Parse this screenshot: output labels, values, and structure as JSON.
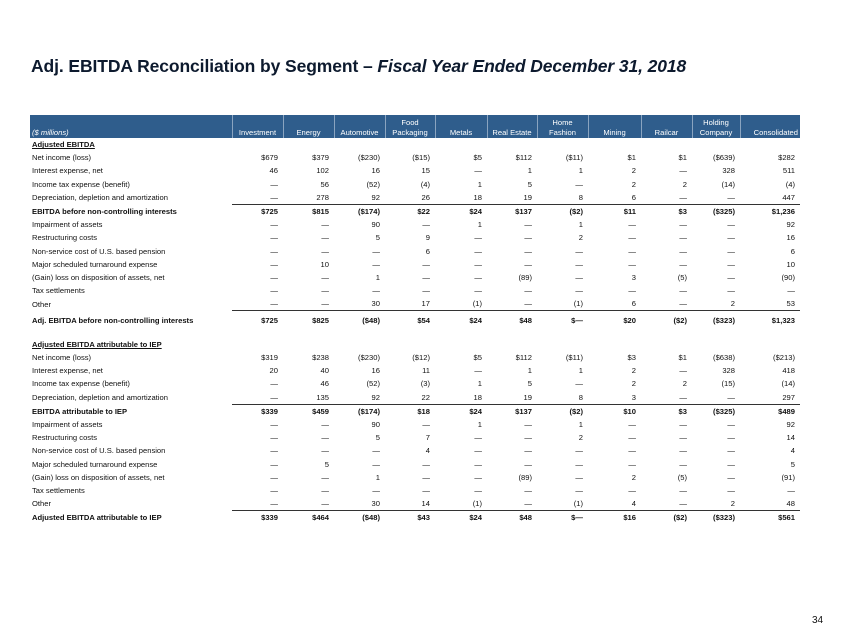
{
  "title": {
    "main": "Adj. EBITDA Reconciliation by Segment – ",
    "italic": "Fiscal Year Ended  December 31, 2018"
  },
  "table": {
    "unit_label": "($ millions)",
    "columns": [
      "Investment",
      "Energy",
      "Automotive",
      "Food Packaging",
      "Metals",
      "Real Estate",
      "Home Fashion",
      "Mining",
      "Railcar",
      "Holding Company",
      "Consolidated"
    ],
    "rows": [
      {
        "type": "sec",
        "label": "Adjusted EBITDA",
        "values": []
      },
      {
        "type": "ind",
        "label": "Net income (loss)",
        "values": [
          "$679",
          "$379",
          "($230)",
          "($15)",
          "$5",
          "$112",
          "($11)",
          "$1",
          "$1",
          "($639)",
          "$282"
        ]
      },
      {
        "type": "ind",
        "label": "Interest expense, net",
        "values": [
          "46",
          "102",
          "16",
          "15",
          "—",
          "1",
          "1",
          "2",
          "—",
          "328",
          "511"
        ]
      },
      {
        "type": "ind",
        "label": "Income tax expense (benefit)",
        "values": [
          "—",
          "56",
          "(52)",
          "(4)",
          "1",
          "5",
          "—",
          "2",
          "2",
          "(14)",
          "(4)"
        ]
      },
      {
        "type": "ind ul",
        "label": "Depreciation, depletion and amortization",
        "values": [
          "—",
          "278",
          "92",
          "26",
          "18",
          "19",
          "8",
          "6",
          "—",
          "—",
          "447"
        ]
      },
      {
        "type": "bold",
        "label": "EBITDA before non-controlling interests",
        "values": [
          "$725",
          "$815",
          "($174)",
          "$22",
          "$24",
          "$137",
          "($2)",
          "$11",
          "$3",
          "($325)",
          "$1,236"
        ]
      },
      {
        "type": "ind",
        "label": "Impairment of assets",
        "values": [
          "—",
          "—",
          "90",
          "—",
          "1",
          "—",
          "1",
          "—",
          "—",
          "—",
          "92"
        ]
      },
      {
        "type": "ind",
        "label": "Restructuring costs",
        "values": [
          "—",
          "—",
          "5",
          "9",
          "—",
          "—",
          "2",
          "—",
          "—",
          "—",
          "16"
        ]
      },
      {
        "type": "ind",
        "label": "Non-service cost of U.S. based pension",
        "values": [
          "—",
          "—",
          "—",
          "6",
          "—",
          "—",
          "—",
          "—",
          "—",
          "—",
          "6"
        ]
      },
      {
        "type": "ind",
        "label": "Major scheduled turnaround expense",
        "values": [
          "—",
          "10",
          "—",
          "—",
          "—",
          "—",
          "—",
          "—",
          "—",
          "—",
          "10"
        ]
      },
      {
        "type": "ind",
        "label": "(Gain) loss on disposition of assets, net",
        "values": [
          "—",
          "—",
          "1",
          "—",
          "—",
          "(89)",
          "—",
          "3",
          "(5)",
          "—",
          "(90)"
        ]
      },
      {
        "type": "ind",
        "label": "Tax settlements",
        "values": [
          "—",
          "—",
          "—",
          "—",
          "—",
          "—",
          "—",
          "—",
          "—",
          "—",
          "—"
        ]
      },
      {
        "type": "ind ul",
        "label": "Other",
        "values": [
          "—",
          "—",
          "30",
          "17",
          "(1)",
          "—",
          "(1)",
          "6",
          "—",
          "2",
          "53"
        ]
      },
      {
        "type": "bold tall",
        "label": "Adj. EBITDA before non-controlling interests",
        "values": [
          "$725",
          "$825",
          "($48)",
          "$54",
          "$24",
          "$48",
          "$—",
          "$20",
          "($2)",
          "($323)",
          "$1,323"
        ]
      },
      {
        "type": "spacer",
        "label": "",
        "values": []
      },
      {
        "type": "sec",
        "label": "Adjusted EBITDA attributable to IEP",
        "values": []
      },
      {
        "type": "ind",
        "label": "Net income (loss)",
        "values": [
          "$319",
          "$238",
          "($230)",
          "($12)",
          "$5",
          "$112",
          "($11)",
          "$3",
          "$1",
          "($638)",
          "($213)"
        ]
      },
      {
        "type": "ind",
        "label": "Interest expense, net",
        "values": [
          "20",
          "40",
          "16",
          "11",
          "—",
          "1",
          "1",
          "2",
          "—",
          "328",
          "418"
        ]
      },
      {
        "type": "ind",
        "label": "Income tax expense (benefit)",
        "values": [
          "—",
          "46",
          "(52)",
          "(3)",
          "1",
          "5",
          "—",
          "2",
          "2",
          "(15)",
          "(14)"
        ]
      },
      {
        "type": "ind ul",
        "label": "Depreciation, depletion and amortization",
        "values": [
          "—",
          "135",
          "92",
          "22",
          "18",
          "19",
          "8",
          "3",
          "—",
          "—",
          "297"
        ]
      },
      {
        "type": "bold",
        "label": "EBITDA attributable to IEP",
        "values": [
          "$339",
          "$459",
          "($174)",
          "$18",
          "$24",
          "$137",
          "($2)",
          "$10",
          "$3",
          "($325)",
          "$489"
        ]
      },
      {
        "type": "ind",
        "label": "Impairment of assets",
        "values": [
          "—",
          "—",
          "90",
          "—",
          "1",
          "—",
          "1",
          "—",
          "—",
          "—",
          "92"
        ]
      },
      {
        "type": "ind",
        "label": "Restructuring costs",
        "values": [
          "—",
          "—",
          "5",
          "7",
          "—",
          "—",
          "2",
          "—",
          "—",
          "—",
          "14"
        ]
      },
      {
        "type": "ind",
        "label": "Non-service cost of U.S. based pension",
        "values": [
          "—",
          "—",
          "—",
          "4",
          "—",
          "—",
          "—",
          "—",
          "—",
          "—",
          "4"
        ]
      },
      {
        "type": "ind",
        "label": "Major scheduled turnaround expense",
        "values": [
          "—",
          "5",
          "—",
          "—",
          "—",
          "—",
          "—",
          "—",
          "—",
          "—",
          "5"
        ]
      },
      {
        "type": "ind",
        "label": "(Gain) loss on disposition of assets, net",
        "values": [
          "—",
          "—",
          "1",
          "—",
          "—",
          "(89)",
          "—",
          "2",
          "(5)",
          "—",
          "(91)"
        ]
      },
      {
        "type": "ind",
        "label": "Tax settlements",
        "values": [
          "—",
          "—",
          "—",
          "—",
          "—",
          "—",
          "—",
          "—",
          "—",
          "—",
          "—"
        ]
      },
      {
        "type": "ind ul",
        "label": "Other",
        "values": [
          "—",
          "—",
          "30",
          "14",
          "(1)",
          "—",
          "(1)",
          "4",
          "—",
          "2",
          "48"
        ]
      },
      {
        "type": "bold",
        "label": "Adjusted EBITDA attributable to IEP",
        "values": [
          "$339",
          "$464",
          "($48)",
          "$43",
          "$24",
          "$48",
          "$—",
          "$16",
          "($2)",
          "($323)",
          "$561"
        ]
      }
    ]
  },
  "colors": {
    "header_bg": "#2f5d8c",
    "title": "#0d1a2e"
  },
  "page_number": "34"
}
